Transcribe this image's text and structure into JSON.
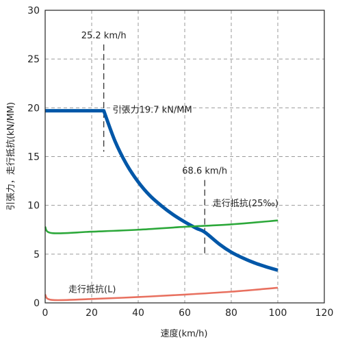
{
  "chart_data": {
    "type": "line",
    "xlabel": "速度(km/h)",
    "ylabel": "引張力，走行抵抗(kN/MM)",
    "xlim": [
      0,
      120
    ],
    "ylim": [
      0,
      30
    ],
    "x_ticks": [
      0,
      20,
      40,
      60,
      80,
      100,
      120
    ],
    "y_ticks": [
      0,
      5,
      10,
      15,
      20,
      25,
      30
    ],
    "grid": true,
    "series": [
      {
        "name": "引張力19.7 kN/MM",
        "color": "#0057a8",
        "x": [
          0,
          25.2,
          30,
          35,
          40,
          45,
          50,
          55,
          60,
          65,
          68.6,
          75,
          80,
          85,
          90,
          95,
          100
        ],
        "y": [
          19.7,
          19.7,
          16.6,
          14.2,
          12.4,
          11.0,
          9.95,
          9.05,
          8.3,
          7.65,
          7.25,
          6.0,
          5.2,
          4.6,
          4.1,
          3.7,
          3.35
        ]
      },
      {
        "name": "走行抵抗(25‰)",
        "color": "#2ca83a",
        "x": [
          0,
          3,
          20,
          40,
          60,
          80,
          100
        ],
        "y": [
          7.8,
          7.15,
          7.3,
          7.5,
          7.8,
          8.05,
          8.45
        ]
      },
      {
        "name": "走行抵抗(L)",
        "color": "#e8705f",
        "x": [
          0,
          3,
          20,
          40,
          60,
          80,
          100
        ],
        "y": [
          0.85,
          0.3,
          0.4,
          0.6,
          0.85,
          1.15,
          1.55
        ]
      }
    ],
    "markers": [
      {
        "x": 25.2,
        "label": "25.2 km/h",
        "y_from": 15.5,
        "y_to": 26.5
      },
      {
        "x": 68.6,
        "label": "68.6 km/h",
        "y_from": 4.8,
        "y_to": 12.6
      }
    ]
  }
}
